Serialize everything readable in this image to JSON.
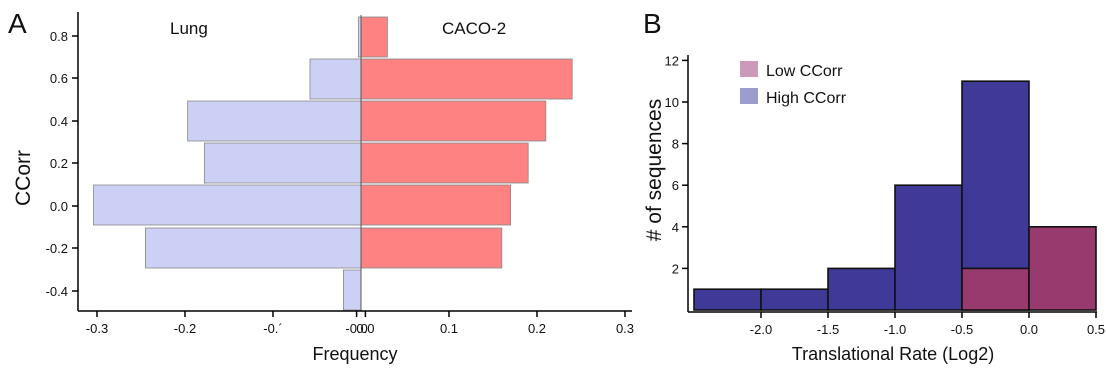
{
  "panels": [
    {
      "label": "A"
    },
    {
      "label": "B"
    }
  ],
  "chart_data": [
    {
      "type": "bar",
      "orientation": "horizontal",
      "categories": [
        "0.8",
        "0.6",
        "0.4",
        "0.2",
        "0.0",
        "-0.2",
        "-0.4"
      ],
      "series": [
        {
          "name": "Lung",
          "values": [
            -0.003,
            -0.058,
            -0.197,
            -0.178,
            -0.304,
            -0.245,
            -0.02
          ],
          "color": "#ccd0f5"
        },
        {
          "name": "CACO-2",
          "values": [
            0.03,
            0.24,
            0.21,
            0.19,
            0.17,
            0.16,
            0.0
          ],
          "color": "#ff8282"
        }
      ],
      "xlabel": "Frequency",
      "ylabel": "CCorr",
      "xlim": [
        -0.32,
        0.32
      ],
      "x_ticks": [
        "-0.3",
        "-0.2",
        "-0.´",
        "-0.0",
        "0.0",
        "0.1",
        "0.2",
        "0.3"
      ],
      "x_tick_values": [
        -0.3,
        -0.2,
        -0.1,
        -0.005,
        0.005,
        0.1,
        0.2,
        0.3
      ],
      "y_ticks": [
        "0.8",
        "0.6",
        "0.4",
        "0.2",
        "0.0",
        "-0.2",
        "-0.4"
      ]
    },
    {
      "type": "bar",
      "subtype": "histogram",
      "bins": [
        [
          -2.5,
          -2.0
        ],
        [
          -2.0,
          -1.5
        ],
        [
          -1.5,
          -1.0
        ],
        [
          -1.0,
          -0.5
        ],
        [
          -0.5,
          0.0
        ],
        [
          0.0,
          0.5
        ]
      ],
      "series": [
        {
          "name": "High CCorr",
          "values": [
            1,
            1,
            2,
            6,
            11,
            0
          ],
          "color": "#3f3a98"
        },
        {
          "name": "Low CCorr",
          "values": [
            0,
            0,
            0,
            0,
            2,
            4
          ],
          "color": "#993a6e"
        }
      ],
      "legend_swatch_colors": {
        "Low CCorr": "#cc9ab9",
        "High CCorr": "#9c9ccf"
      },
      "xlabel": "Translational Rate (Log2)",
      "ylabel": "# of sequences",
      "xlim": [
        -2.5,
        0.5
      ],
      "ylim": [
        0,
        12
      ],
      "x_ticks": [
        "-2.0",
        "-1.5",
        "-1.0",
        "-0.5",
        "0.0",
        "0.5"
      ],
      "x_tick_values": [
        -2.0,
        -1.5,
        -1.0,
        -0.5,
        0.0,
        0.5
      ],
      "y_ticks": [
        "2",
        "4",
        "6",
        "8",
        "10",
        "12"
      ],
      "y_tick_values": [
        2,
        4,
        6,
        8,
        10,
        12
      ],
      "legend_position": "top-left"
    }
  ]
}
